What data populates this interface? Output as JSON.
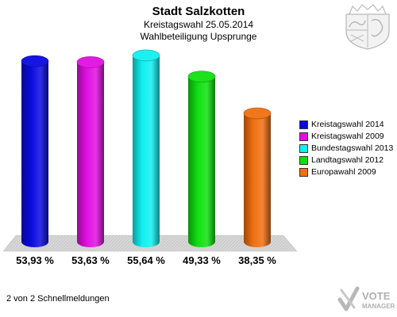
{
  "header": {
    "title": "Stadt Salzkotten",
    "subtitle1": "Kreistagswahl 25.05.2014",
    "subtitle2": "Wahlbeteiligung Upsprunge"
  },
  "footer": {
    "text": "2 von 2 Schnellmeldungen"
  },
  "logo": {
    "line1": "VOTE",
    "line2": "MANAGER"
  },
  "chart_data": {
    "type": "bar",
    "title": "Stadt Salzkotten",
    "subtitle": "Kreistagswahl 25.05.2014 — Wahlbeteiligung Upsprunge",
    "categories": [
      "Kreistagswahl 2014",
      "Kreistagswahl 2009",
      "Bundestagswahl 2013",
      "Landtagswahl 2012",
      "Europawahl 2009"
    ],
    "values": [
      53.93,
      53.63,
      55.64,
      49.33,
      38.35
    ],
    "labels": [
      "53,93 %",
      "53,63 %",
      "55,64 %",
      "49,33 %",
      "38,35 %"
    ],
    "colors": [
      "#0a0ae0",
      "#e010e0",
      "#10f0f0",
      "#10e010",
      "#f07010"
    ],
    "legend_position": "right",
    "grid": false,
    "ylim": [
      0,
      58
    ]
  }
}
